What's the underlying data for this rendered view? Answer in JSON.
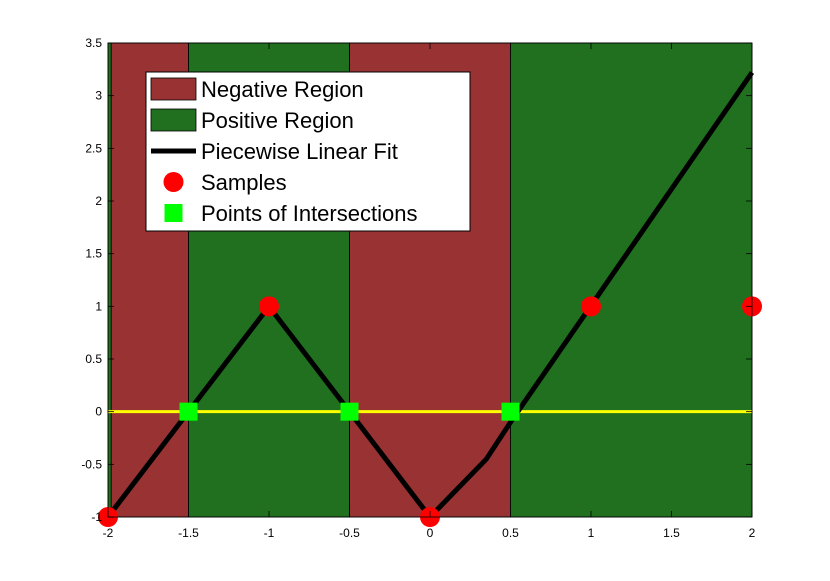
{
  "chart_data": {
    "type": "line",
    "xlim": [
      -2,
      2
    ],
    "ylim": [
      -1,
      3.5
    ],
    "xticks": [
      "-2",
      "-1.5",
      "-1",
      "-0.5",
      "0",
      "0.5",
      "1",
      "1.5",
      "2"
    ],
    "yticks": [
      "-1",
      "-0.5",
      "0",
      "0.5",
      "1",
      "1.5",
      "2",
      "2.5",
      "3",
      "3.5"
    ],
    "grid": false,
    "legend_position": "top-left",
    "regions": [
      {
        "from": -2.0,
        "to": -1.98,
        "class": "positive"
      },
      {
        "from": -1.98,
        "to": -1.5,
        "class": "negative"
      },
      {
        "from": -1.5,
        "to": -0.5,
        "class": "positive"
      },
      {
        "from": -0.5,
        "to": 0.5,
        "class": "negative"
      },
      {
        "from": 0.5,
        "to": 2.0,
        "class": "positive"
      }
    ],
    "piecewise_fit": {
      "x": [
        -2,
        -1,
        -0.5,
        0,
        0.35,
        0.5,
        2
      ],
      "y": [
        -1,
        1,
        0,
        -1,
        -0.45,
        -0.1,
        3.22
      ]
    },
    "zero_line": {
      "y": 0,
      "color": "#ffff00"
    },
    "samples": {
      "x": [
        -2,
        -1,
        0,
        1,
        2
      ],
      "y": [
        -1,
        1,
        -1,
        1,
        1
      ]
    },
    "intersections": {
      "x": [
        -1.5,
        -0.5,
        0.5
      ],
      "y": [
        0,
        0,
        0
      ]
    },
    "legend": [
      {
        "label": "Negative Region",
        "marker": "patch",
        "color": "#993333"
      },
      {
        "label": "Positive Region",
        "marker": "patch",
        "color": "#207020"
      },
      {
        "label": "Piecewise Linear Fit",
        "marker": "line",
        "color": "#000000"
      },
      {
        "label": "Samples",
        "marker": "circle",
        "color": "#ff0000"
      },
      {
        "label": "Points of Intersections",
        "marker": "square",
        "color": "#00ff00"
      }
    ],
    "colors": {
      "negative": "#993333",
      "positive": "#207020",
      "fit": "#000000",
      "sample": "#ff0000",
      "intersection": "#00ff00",
      "zero_line": "#ffff00"
    }
  }
}
